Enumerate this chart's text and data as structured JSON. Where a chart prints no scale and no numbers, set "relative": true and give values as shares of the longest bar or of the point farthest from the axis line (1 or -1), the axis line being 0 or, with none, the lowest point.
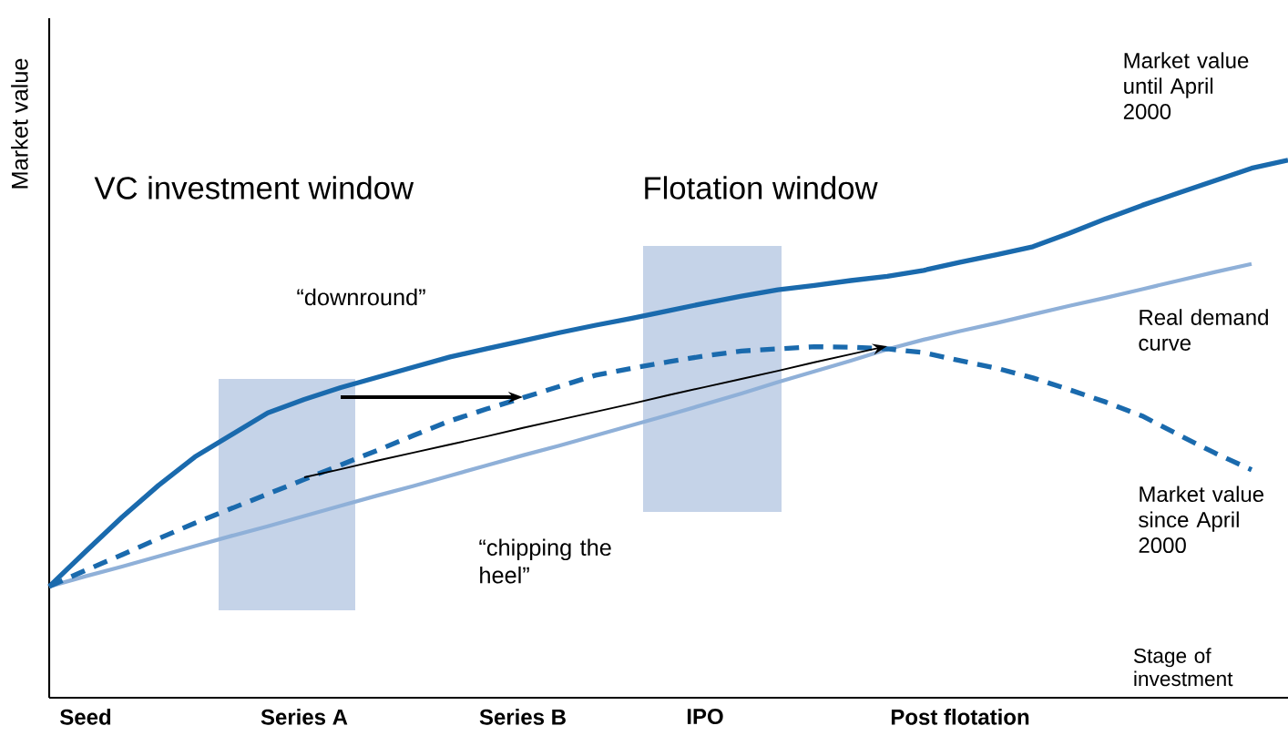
{
  "chart_data": {
    "type": "line",
    "relative": true,
    "ylabel": "Market value",
    "xlabel": "Stage of investment",
    "categories": [
      null,
      "Seed",
      null,
      null,
      null,
      null,
      null,
      "Series A",
      null,
      null,
      null,
      null,
      null,
      "Series B",
      null,
      null,
      null,
      null,
      "IPO",
      null,
      null,
      null,
      null,
      null,
      null,
      "Post flotation",
      null,
      null,
      null,
      null,
      null,
      null,
      null,
      null,
      null
    ],
    "series": [
      {
        "name": "Market value until April 2000",
        "color": "#1a6aad",
        "values": [
          0.207,
          0.272,
          0.336,
          0.395,
          0.448,
          0.489,
          0.53,
          0.555,
          0.577,
          0.596,
          0.615,
          0.634,
          0.649,
          0.664,
          0.679,
          0.693,
          0.706,
          0.72,
          0.734,
          0.747,
          0.759,
          0.767,
          0.776,
          0.784,
          0.795,
          0.81,
          0.824,
          0.839,
          0.864,
          0.891,
          0.916,
          0.939,
          0.962,
          0.985,
          1
        ]
      },
      {
        "name": "Real demand curve",
        "color": "#8fb0d8",
        "values": [
          0.207,
          0.226,
          0.244,
          0.263,
          0.282,
          0.301,
          0.319,
          0.338,
          0.357,
          0.376,
          0.394,
          0.413,
          0.432,
          0.451,
          0.469,
          0.488,
          0.507,
          0.526,
          0.546,
          0.566,
          0.587,
          0.607,
          0.627,
          0.648,
          0.666,
          0.682,
          0.697,
          0.713,
          0.729,
          0.744,
          0.76,
          0.776,
          0.792,
          0.807,
          null
        ]
      },
      {
        "name": "Market value since April 2000",
        "color": "#1a6aad",
        "line_style": "dashed",
        "values": [
          0.207,
          0.237,
          0.266,
          0.296,
          0.325,
          0.352,
          0.379,
          0.406,
          0.433,
          0.46,
          0.488,
          0.515,
          0.537,
          0.558,
          0.579,
          0.6,
          0.613,
          0.625,
          0.636,
          0.645,
          0.649,
          0.653,
          0.652,
          0.649,
          0.642,
          0.627,
          0.613,
          0.595,
          0.573,
          0.55,
          0.524,
          0.489,
          0.455,
          0.424,
          null
        ]
      },
      {
        "type": "line",
        "color": "#000000",
        "values": [
          null,
          null,
          null,
          null,
          null,
          null,
          null,
          null,
          0.559,
          0.559,
          0.559,
          0.559,
          0.559,
          0.559,
          null,
          null,
          null,
          null,
          null,
          null,
          null,
          null,
          null,
          null,
          null,
          null,
          null,
          null,
          null,
          null,
          null,
          null,
          null,
          null,
          null
        ]
      },
      {
        "type": "line",
        "color": "#000000",
        "values": [
          null,
          null,
          null,
          null,
          null,
          null,
          null,
          0.41,
          0.425,
          0.441,
          0.456,
          0.471,
          0.486,
          0.502,
          0.517,
          0.532,
          0.547,
          0.563,
          0.578,
          0.593,
          0.608,
          0.624,
          0.639,
          0.654,
          null,
          null,
          null,
          null,
          null,
          null,
          null,
          null,
          null,
          null,
          null
        ]
      }
    ],
    "annotations": [
      "VC investment window",
      "Flotation window",
      "“downround”",
      "“chipping the heel”"
    ]
  }
}
